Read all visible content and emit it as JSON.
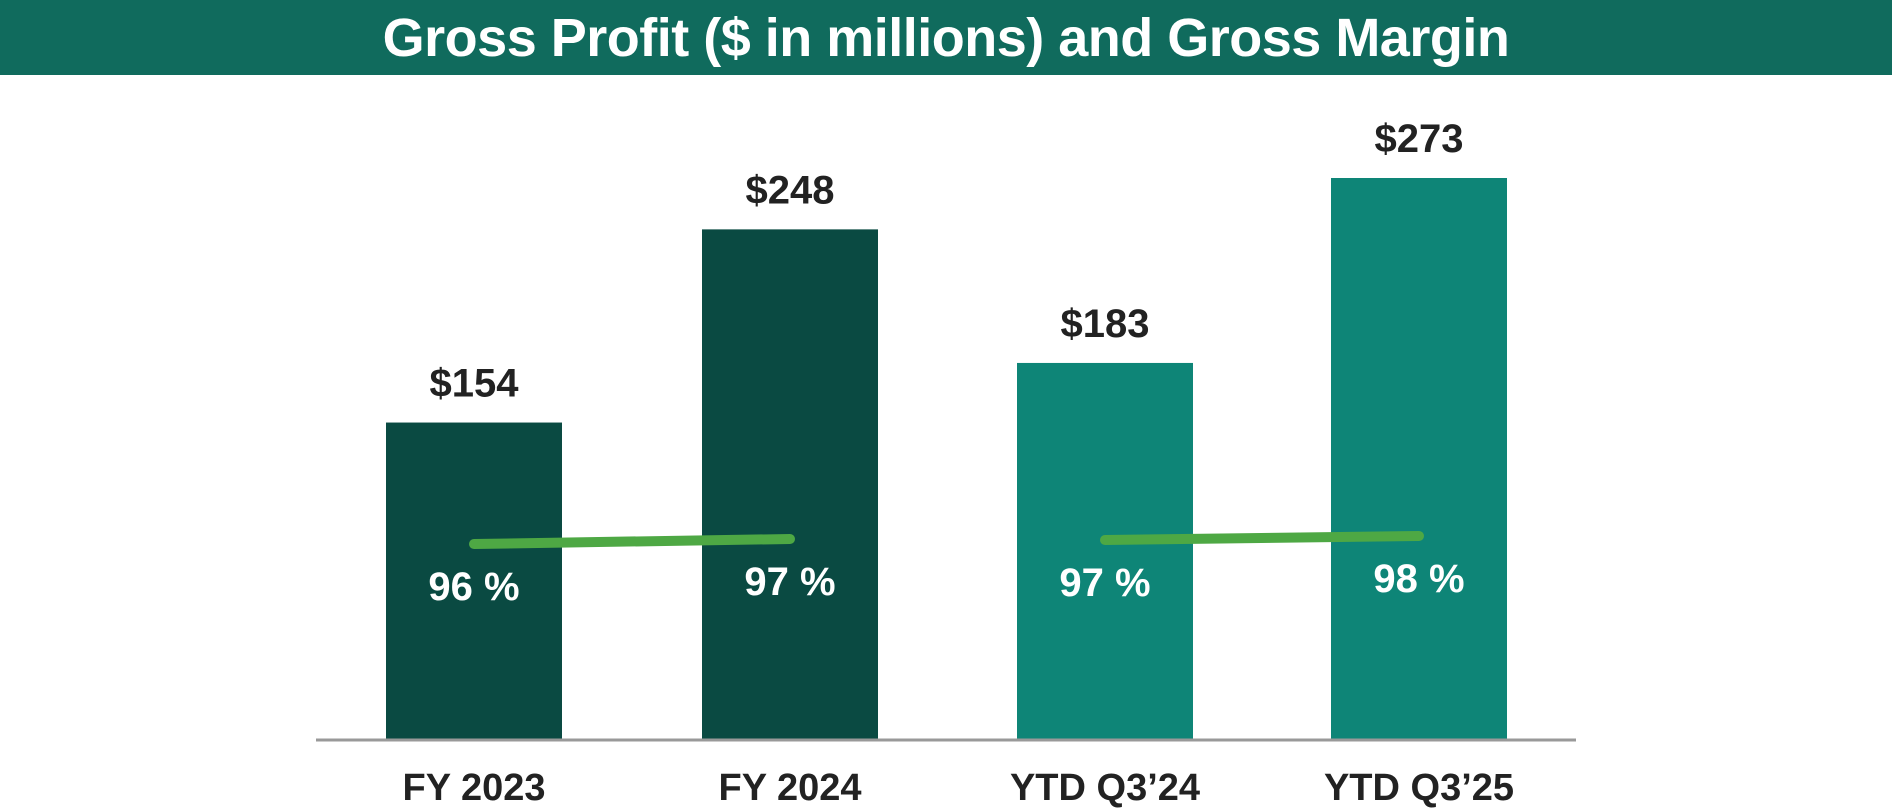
{
  "title": "Gross Profit ($ in millions) and Gross Margin",
  "chart_data": {
    "type": "bar",
    "title": "Gross Profit ($ in millions) and Gross Margin",
    "categories": [
      "FY 2023",
      "FY 2024",
      "YTD Q3’24",
      "YTD Q3’25"
    ],
    "series": [
      {
        "name": "Gross Profit",
        "unit": "$ in millions",
        "values": [
          154,
          248,
          183,
          273
        ],
        "labels": [
          "$154",
          "$248",
          "$183",
          "$273"
        ]
      },
      {
        "name": "Gross Margin",
        "unit": "%",
        "values": [
          96,
          97,
          97,
          98
        ],
        "labels": [
          "96 %",
          "97 %",
          "97 %",
          "98 %"
        ],
        "line_groups": [
          [
            0,
            1
          ],
          [
            2,
            3
          ]
        ]
      }
    ],
    "ylim": [
      0,
      300
    ],
    "grid": false,
    "colors": {
      "bar_fy": "#0a4a42",
      "bar_ytd": "#0e8577",
      "margin_line": "#4ea844",
      "baseline": "#999999",
      "title_bg": "#106b5d"
    }
  }
}
